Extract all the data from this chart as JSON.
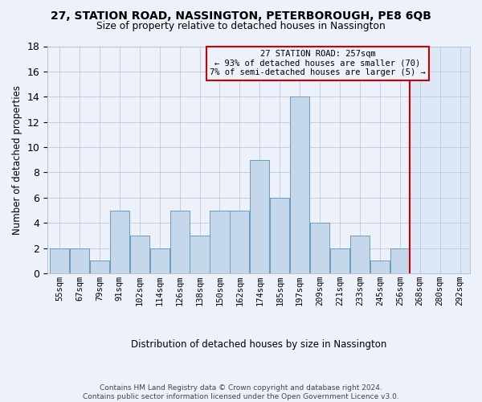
{
  "title": "27, STATION ROAD, NASSINGTON, PETERBOROUGH, PE8 6QB",
  "subtitle": "Size of property relative to detached houses in Nassington",
  "xlabel": "Distribution of detached houses by size in Nassington",
  "ylabel": "Number of detached properties",
  "bar_values": [
    2,
    2,
    1,
    5,
    3,
    2,
    5,
    3,
    5,
    5,
    9,
    6,
    14,
    4,
    2,
    3,
    1,
    2
  ],
  "tick_labels": [
    "55sqm",
    "67sqm",
    "79sqm",
    "91sqm",
    "102sqm",
    "114sqm",
    "126sqm",
    "138sqm",
    "150sqm",
    "162sqm",
    "174sqm",
    "185sqm",
    "197sqm",
    "209sqm",
    "221sqm",
    "233sqm",
    "245sqm",
    "256sqm",
    "268sqm",
    "280sqm",
    "292sqm"
  ],
  "bar_color_left": "#c5d8eb",
  "bar_color_right": "#d4e4f0",
  "bar_edge_color": "#6a9ec0",
  "vline_color": "#cc0000",
  "vline_x": 17.5,
  "annotation_line1": "27 STATION ROAD: 257sqm",
  "annotation_line2": "← 93% of detached houses are smaller (70)",
  "annotation_line3": "7% of semi-detached houses are larger (5) →",
  "ylim_max": 18,
  "yticks": [
    0,
    2,
    4,
    6,
    8,
    10,
    12,
    14,
    16,
    18
  ],
  "background_color": "#edf1fa",
  "right_bg_color": "#dce8f5",
  "grid_color": "#b8c0d8",
  "footer_line1": "Contains HM Land Registry data © Crown copyright and database right 2024.",
  "footer_line2": "Contains public sector information licensed under the Open Government Licence v3.0."
}
